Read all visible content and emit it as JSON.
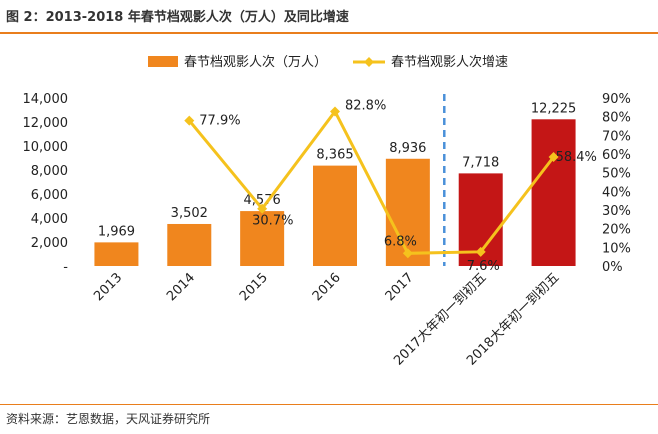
{
  "title": "图 2：2013-2018 年春节档观影人次（万人）及同比增速",
  "source": "资料来源：艺恩数据，天风证券研究所",
  "colors": {
    "bar": "#f0861e",
    "bar_highlight": "#c41616",
    "line": "#f5c21d",
    "rule": "#e97e1c",
    "divider": "#4a90d9"
  },
  "chart_data": {
    "type": "bar",
    "categories": [
      "2013",
      "2014",
      "2015",
      "2016",
      "2017",
      "2017大年初一到初五",
      "2018大年初一到初五"
    ],
    "series": [
      {
        "name": "春节档观影人次（万人）",
        "type": "bar",
        "axis": "left",
        "values": [
          1969,
          3502,
          4576,
          8365,
          8936,
          7718,
          12225
        ],
        "labels": [
          "1,969",
          "3,502",
          "4,576",
          "8,365",
          "8,936",
          "7,718",
          "12,225"
        ],
        "highlight": [
          false,
          false,
          false,
          false,
          false,
          true,
          true
        ]
      },
      {
        "name": "春节档观影人次增速",
        "type": "line",
        "axis": "right",
        "values": [
          null,
          77.9,
          30.7,
          82.8,
          6.8,
          7.6,
          58.4
        ],
        "labels": [
          "",
          "77.9%",
          "30.7%",
          "82.8%",
          "6.8%",
          "7.6%",
          "58.4%"
        ]
      }
    ],
    "left_axis": {
      "ylim": [
        0,
        14000
      ],
      "ticks": [
        0,
        2000,
        4000,
        6000,
        8000,
        10000,
        12000,
        14000
      ],
      "tick_labels": [
        "-",
        "2,000",
        "4,000",
        "6,000",
        "8,000",
        "10,000",
        "12,000",
        "14,000"
      ]
    },
    "right_axis": {
      "ylim": [
        0,
        90
      ],
      "ticks": [
        0,
        10,
        20,
        30,
        40,
        50,
        60,
        70,
        80,
        90
      ],
      "tick_labels": [
        "0%",
        "10%",
        "20%",
        "30%",
        "40%",
        "50%",
        "60%",
        "70%",
        "80%",
        "90%"
      ]
    },
    "grid": false,
    "legend_position": "top-center",
    "divider_after_category": "2017"
  }
}
